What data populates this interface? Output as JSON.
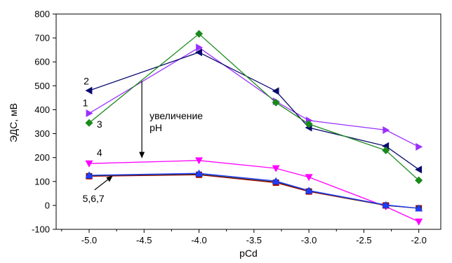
{
  "chart_data": {
    "type": "line",
    "title": "",
    "xlabel": "pCd",
    "ylabel": "ЭДС, мВ",
    "xlim": [
      -5.3,
      -1.8
    ],
    "ylim": [
      -100,
      800
    ],
    "xticks": [
      -5.0,
      -4.5,
      -4.0,
      -3.5,
      -3.0,
      -2.5,
      -2.0
    ],
    "xtick_labels": [
      "-5.0",
      "-4.5",
      "-4.0",
      "-3.5",
      "-3.0",
      "-2.5",
      "-2.0"
    ],
    "yticks": [
      -100,
      0,
      100,
      200,
      300,
      400,
      500,
      600,
      700,
      800
    ],
    "ytick_labels": [
      "-100",
      "0",
      "100",
      "200",
      "300",
      "400",
      "500",
      "600",
      "700",
      "800"
    ],
    "grid": false,
    "series": [
      {
        "name": "1",
        "color": "#9b30ff",
        "marker": "triangle-right",
        "x": [
          -5.0,
          -4.0,
          -3.3,
          -3.0,
          -2.3,
          -2.0
        ],
        "y": [
          385,
          660,
          435,
          355,
          315,
          245
        ]
      },
      {
        "name": "2",
        "color": "#0a0a6e",
        "marker": "triangle-left",
        "x": [
          -5.0,
          -4.0,
          -3.3,
          -3.0,
          -2.3,
          -2.0
        ],
        "y": [
          480,
          640,
          478,
          325,
          248,
          150
        ]
      },
      {
        "name": "3",
        "color": "#1a8a1a",
        "marker": "diamond",
        "x": [
          -5.0,
          -4.0,
          -3.3,
          -3.0,
          -2.3,
          -2.0
        ],
        "y": [
          345,
          717,
          430,
          340,
          230,
          105
        ]
      },
      {
        "name": "4",
        "color": "#ff00ff",
        "marker": "triangle-down",
        "x": [
          -5.0,
          -4.0,
          -3.3,
          -3.0,
          -2.3,
          -2.0
        ],
        "y": [
          175,
          188,
          155,
          118,
          -5,
          -68
        ]
      },
      {
        "name": "5",
        "color": "#c00000",
        "marker": "square",
        "x": [
          -5.0,
          -4.0,
          -3.3,
          -3.0,
          -2.3,
          -2.0
        ],
        "y": [
          122,
          128,
          95,
          58,
          0,
          -12
        ]
      },
      {
        "name": "6",
        "color": "#303030",
        "marker": "circle",
        "x": [
          -5.0,
          -4.0,
          -3.3,
          -3.0,
          -2.3,
          -2.0
        ],
        "y": [
          124,
          130,
          98,
          60,
          0,
          -12
        ]
      },
      {
        "name": "7",
        "color": "#1e3cff",
        "marker": "triangle-up",
        "x": [
          -5.0,
          -4.0,
          -3.3,
          -3.0,
          -2.3,
          -2.0
        ],
        "y": [
          126,
          134,
          102,
          62,
          2,
          -12
        ]
      }
    ],
    "annotations": [
      {
        "text": "1",
        "x": -5.06,
        "y": 415
      },
      {
        "text": "2",
        "x": -5.05,
        "y": 505
      },
      {
        "text": "3",
        "x": -4.93,
        "y": 325
      },
      {
        "text": "4",
        "x": -4.93,
        "y": 207
      },
      {
        "text": "5,6,7",
        "x": -5.06,
        "y": 15
      },
      {
        "text": "увеличение",
        "x": -4.45,
        "y": 360
      },
      {
        "text": "pH",
        "x": -4.45,
        "y": 310
      }
    ],
    "arrows": [
      {
        "from": [
          -4.52,
          520
        ],
        "to": [
          -4.52,
          200
        ]
      },
      {
        "from": [
          -4.95,
          65
        ],
        "to": [
          -4.79,
          122
        ]
      }
    ]
  }
}
